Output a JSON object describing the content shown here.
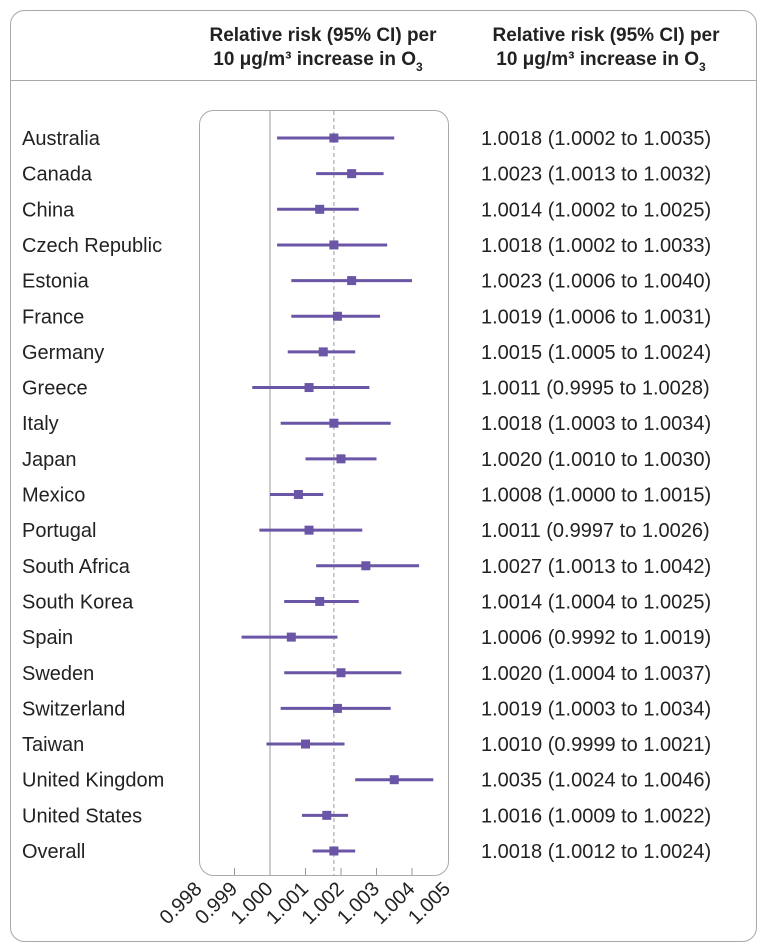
{
  "chart_data": {
    "type": "forest",
    "headers": {
      "plot_line1": "Relative risk (95% CI) per",
      "plot_line2": "10 μg/m³ increase in O",
      "plot_sub": "3",
      "text_line1": "Relative risk (95% CI) per",
      "text_line2": "10 μg/m³ increase in O",
      "text_sub": "3"
    },
    "xlim": [
      0.998,
      1.005
    ],
    "xticks": [
      "0.998",
      "0.999",
      "1.000",
      "1.001",
      "1.002",
      "1.003",
      "1.004",
      "1.005"
    ],
    "null_line": 1.0,
    "pooled_line": 1.0018,
    "color": "#6a55a6",
    "rows": [
      {
        "label": "Australia",
        "rr": 1.0018,
        "lo": 1.0002,
        "hi": 1.0035,
        "text": "1.0018 (1.0002 to 1.0035)"
      },
      {
        "label": "Canada",
        "rr": 1.0023,
        "lo": 1.0013,
        "hi": 1.0032,
        "text": "1.0023 (1.0013 to 1.0032)"
      },
      {
        "label": "China",
        "rr": 1.0014,
        "lo": 1.0002,
        "hi": 1.0025,
        "text": "1.0014 (1.0002 to 1.0025)"
      },
      {
        "label": "Czech Republic",
        "rr": 1.0018,
        "lo": 1.0002,
        "hi": 1.0033,
        "text": "1.0018 (1.0002 to 1.0033)"
      },
      {
        "label": "Estonia",
        "rr": 1.0023,
        "lo": 1.0006,
        "hi": 1.004,
        "text": "1.0023 (1.0006 to 1.0040)"
      },
      {
        "label": "France",
        "rr": 1.0019,
        "lo": 1.0006,
        "hi": 1.0031,
        "text": "1.0019 (1.0006 to 1.0031)"
      },
      {
        "label": "Germany",
        "rr": 1.0015,
        "lo": 1.0005,
        "hi": 1.0024,
        "text": "1.0015 (1.0005 to 1.0024)"
      },
      {
        "label": "Greece",
        "rr": 1.0011,
        "lo": 0.9995,
        "hi": 1.0028,
        "text": "1.0011 (0.9995 to 1.0028)"
      },
      {
        "label": "Italy",
        "rr": 1.0018,
        "lo": 1.0003,
        "hi": 1.0034,
        "text": "1.0018 (1.0003 to 1.0034)"
      },
      {
        "label": "Japan",
        "rr": 1.002,
        "lo": 1.001,
        "hi": 1.003,
        "text": "1.0020 (1.0010 to 1.0030)"
      },
      {
        "label": "Mexico",
        "rr": 1.0008,
        "lo": 1.0,
        "hi": 1.0015,
        "text": "1.0008 (1.0000 to 1.0015)"
      },
      {
        "label": "Portugal",
        "rr": 1.0011,
        "lo": 0.9997,
        "hi": 1.0026,
        "text": "1.0011 (0.9997 to 1.0026)"
      },
      {
        "label": "South Africa",
        "rr": 1.0027,
        "lo": 1.0013,
        "hi": 1.0042,
        "text": "1.0027 (1.0013 to 1.0042)"
      },
      {
        "label": "South Korea",
        "rr": 1.0014,
        "lo": 1.0004,
        "hi": 1.0025,
        "text": "1.0014 (1.0004 to 1.0025)"
      },
      {
        "label": "Spain",
        "rr": 1.0006,
        "lo": 0.9992,
        "hi": 1.0019,
        "text": "1.0006 (0.9992 to 1.0019)"
      },
      {
        "label": "Sweden",
        "rr": 1.002,
        "lo": 1.0004,
        "hi": 1.0037,
        "text": "1.0020 (1.0004 to 1.0037)"
      },
      {
        "label": "Switzerland",
        "rr": 1.0019,
        "lo": 1.0003,
        "hi": 1.0034,
        "text": "1.0019 (1.0003 to 1.0034)"
      },
      {
        "label": "Taiwan",
        "rr": 1.001,
        "lo": 0.9999,
        "hi": 1.0021,
        "text": "1.0010 (0.9999 to 1.0021)"
      },
      {
        "label": "United Kingdom",
        "rr": 1.0035,
        "lo": 1.0024,
        "hi": 1.0046,
        "text": "1.0035 (1.0024 to 1.0046)"
      },
      {
        "label": "United States",
        "rr": 1.0016,
        "lo": 1.0009,
        "hi": 1.0022,
        "text": "1.0016 (1.0009 to 1.0022)"
      },
      {
        "label": "Overall",
        "rr": 1.0018,
        "lo": 1.0012,
        "hi": 1.0024,
        "text": "1.0018 (1.0012 to 1.0024)"
      }
    ]
  }
}
